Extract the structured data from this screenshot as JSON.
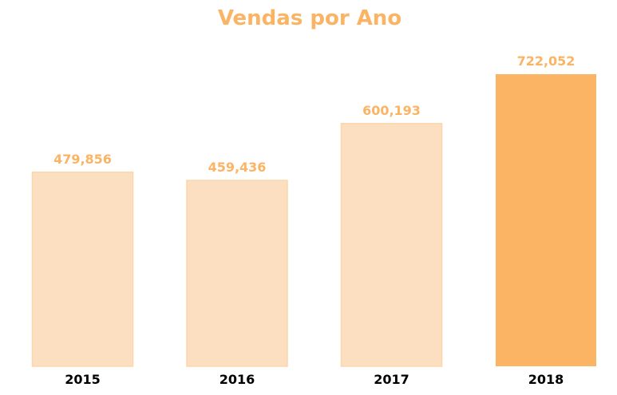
{
  "chart_data": {
    "type": "bar",
    "title": "Vendas por Ano",
    "xlabel": "",
    "ylabel": "",
    "categories": [
      "2015",
      "2016",
      "2017",
      "2018"
    ],
    "values": [
      479856,
      459436,
      600193,
      722052
    ],
    "value_labels": [
      "479,856",
      "459,436",
      "600,193",
      "722,052"
    ],
    "ylim": [
      0,
      722052
    ],
    "grid": false,
    "legend": "none",
    "highlight_index": 3,
    "colors": {
      "highlight": "#fbb364",
      "normal": "#fcdfc0",
      "normal_edge": "#fbd5ab",
      "title": "#fbb364",
      "value_label": "#fbb364",
      "tick_label": "#000000"
    }
  }
}
